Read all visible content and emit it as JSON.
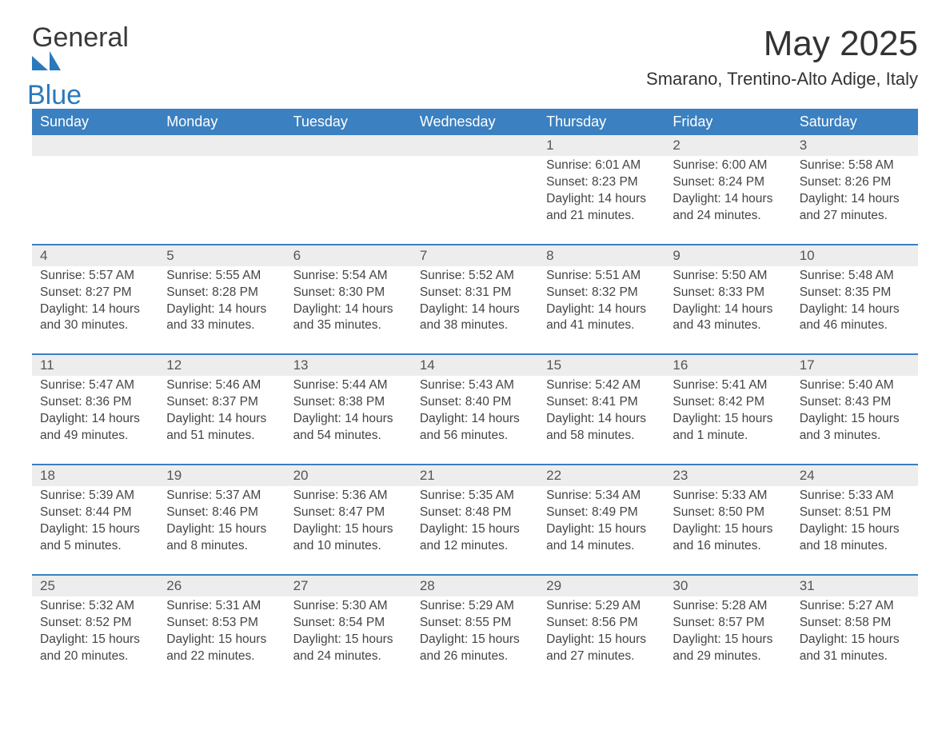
{
  "brand": {
    "word1": "General",
    "word2": "Blue",
    "word1_color": "#3a3a3a",
    "word2_color": "#2a79bd",
    "mark_color": "#2a79bd"
  },
  "title": "May 2025",
  "location": "Smarano, Trentino-Alto Adige, Italy",
  "colors": {
    "header_bg": "#3b80c0",
    "header_text": "#ffffff",
    "daynum_bg": "#ededed",
    "week_divider": "#3b80c0",
    "body_text": "#444444",
    "page_bg": "#ffffff"
  },
  "layout": {
    "columns": 7,
    "weeks": 5,
    "col_width_pct": 14.28
  },
  "weekdays": [
    "Sunday",
    "Monday",
    "Tuesday",
    "Wednesday",
    "Thursday",
    "Friday",
    "Saturday"
  ],
  "weeks": [
    [
      null,
      null,
      null,
      null,
      {
        "n": "1",
        "sunrise": "6:01 AM",
        "sunset": "8:23 PM",
        "daylight": "14 hours and 21 minutes."
      },
      {
        "n": "2",
        "sunrise": "6:00 AM",
        "sunset": "8:24 PM",
        "daylight": "14 hours and 24 minutes."
      },
      {
        "n": "3",
        "sunrise": "5:58 AM",
        "sunset": "8:26 PM",
        "daylight": "14 hours and 27 minutes."
      }
    ],
    [
      {
        "n": "4",
        "sunrise": "5:57 AM",
        "sunset": "8:27 PM",
        "daylight": "14 hours and 30 minutes."
      },
      {
        "n": "5",
        "sunrise": "5:55 AM",
        "sunset": "8:28 PM",
        "daylight": "14 hours and 33 minutes."
      },
      {
        "n": "6",
        "sunrise": "5:54 AM",
        "sunset": "8:30 PM",
        "daylight": "14 hours and 35 minutes."
      },
      {
        "n": "7",
        "sunrise": "5:52 AM",
        "sunset": "8:31 PM",
        "daylight": "14 hours and 38 minutes."
      },
      {
        "n": "8",
        "sunrise": "5:51 AM",
        "sunset": "8:32 PM",
        "daylight": "14 hours and 41 minutes."
      },
      {
        "n": "9",
        "sunrise": "5:50 AM",
        "sunset": "8:33 PM",
        "daylight": "14 hours and 43 minutes."
      },
      {
        "n": "10",
        "sunrise": "5:48 AM",
        "sunset": "8:35 PM",
        "daylight": "14 hours and 46 minutes."
      }
    ],
    [
      {
        "n": "11",
        "sunrise": "5:47 AM",
        "sunset": "8:36 PM",
        "daylight": "14 hours and 49 minutes."
      },
      {
        "n": "12",
        "sunrise": "5:46 AM",
        "sunset": "8:37 PM",
        "daylight": "14 hours and 51 minutes."
      },
      {
        "n": "13",
        "sunrise": "5:44 AM",
        "sunset": "8:38 PM",
        "daylight": "14 hours and 54 minutes."
      },
      {
        "n": "14",
        "sunrise": "5:43 AM",
        "sunset": "8:40 PM",
        "daylight": "14 hours and 56 minutes."
      },
      {
        "n": "15",
        "sunrise": "5:42 AM",
        "sunset": "8:41 PM",
        "daylight": "14 hours and 58 minutes."
      },
      {
        "n": "16",
        "sunrise": "5:41 AM",
        "sunset": "8:42 PM",
        "daylight": "15 hours and 1 minute."
      },
      {
        "n": "17",
        "sunrise": "5:40 AM",
        "sunset": "8:43 PM",
        "daylight": "15 hours and 3 minutes."
      }
    ],
    [
      {
        "n": "18",
        "sunrise": "5:39 AM",
        "sunset": "8:44 PM",
        "daylight": "15 hours and 5 minutes."
      },
      {
        "n": "19",
        "sunrise": "5:37 AM",
        "sunset": "8:46 PM",
        "daylight": "15 hours and 8 minutes."
      },
      {
        "n": "20",
        "sunrise": "5:36 AM",
        "sunset": "8:47 PM",
        "daylight": "15 hours and 10 minutes."
      },
      {
        "n": "21",
        "sunrise": "5:35 AM",
        "sunset": "8:48 PM",
        "daylight": "15 hours and 12 minutes."
      },
      {
        "n": "22",
        "sunrise": "5:34 AM",
        "sunset": "8:49 PM",
        "daylight": "15 hours and 14 minutes."
      },
      {
        "n": "23",
        "sunrise": "5:33 AM",
        "sunset": "8:50 PM",
        "daylight": "15 hours and 16 minutes."
      },
      {
        "n": "24",
        "sunrise": "5:33 AM",
        "sunset": "8:51 PM",
        "daylight": "15 hours and 18 minutes."
      }
    ],
    [
      {
        "n": "25",
        "sunrise": "5:32 AM",
        "sunset": "8:52 PM",
        "daylight": "15 hours and 20 minutes."
      },
      {
        "n": "26",
        "sunrise": "5:31 AM",
        "sunset": "8:53 PM",
        "daylight": "15 hours and 22 minutes."
      },
      {
        "n": "27",
        "sunrise": "5:30 AM",
        "sunset": "8:54 PM",
        "daylight": "15 hours and 24 minutes."
      },
      {
        "n": "28",
        "sunrise": "5:29 AM",
        "sunset": "8:55 PM",
        "daylight": "15 hours and 26 minutes."
      },
      {
        "n": "29",
        "sunrise": "5:29 AM",
        "sunset": "8:56 PM",
        "daylight": "15 hours and 27 minutes."
      },
      {
        "n": "30",
        "sunrise": "5:28 AM",
        "sunset": "8:57 PM",
        "daylight": "15 hours and 29 minutes."
      },
      {
        "n": "31",
        "sunrise": "5:27 AM",
        "sunset": "8:58 PM",
        "daylight": "15 hours and 31 minutes."
      }
    ]
  ],
  "labels": {
    "sunrise": "Sunrise: ",
    "sunset": "Sunset: ",
    "daylight": "Daylight: "
  }
}
